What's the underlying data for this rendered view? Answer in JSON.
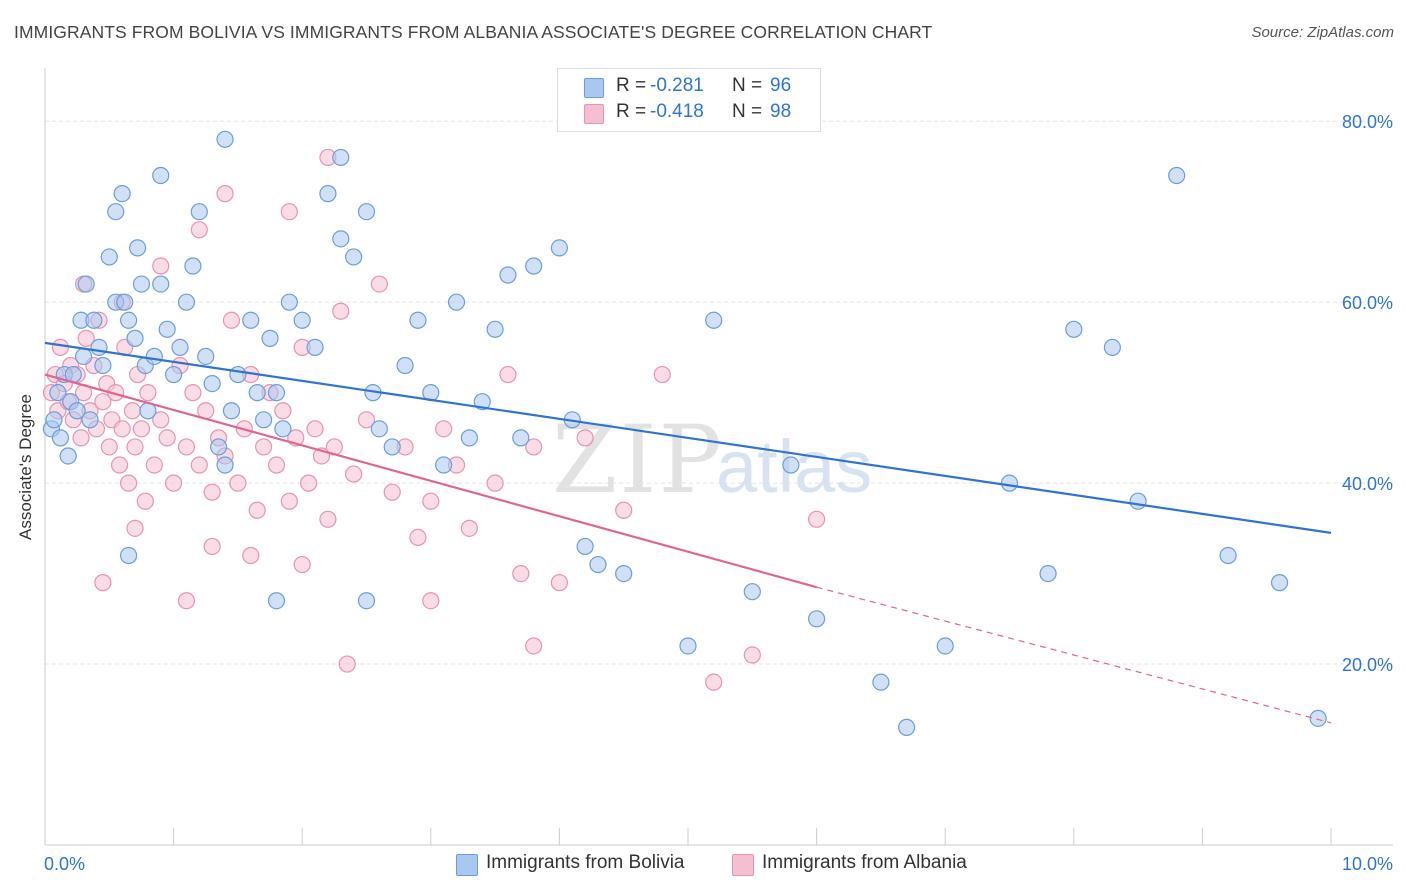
{
  "title": "IMMIGRANTS FROM BOLIVIA VS IMMIGRANTS FROM ALBANIA ASSOCIATE'S DEGREE CORRELATION CHART",
  "source": "Source: ZipAtlas.com",
  "watermark": {
    "zip": "ZIP",
    "atlas": "atlas"
  },
  "colors": {
    "bolivia_fill": "#a9c8ef",
    "bolivia_stroke": "#6b9ddc",
    "bolivia_line": "#2f74d0",
    "albania_fill": "#f6bfd1",
    "albania_stroke": "#e893b0",
    "albania_line": "#e06494",
    "value_text": "#2f74d0",
    "grid": "#e3e3e3"
  },
  "legend": {
    "rows": [
      {
        "r_label": "R =",
        "r_value": "-0.281",
        "n_label": "N =",
        "n_value": "96"
      },
      {
        "r_label": "R =",
        "r_value": "-0.418",
        "n_label": "N =",
        "n_value": "98"
      }
    ]
  },
  "bottom_legend": {
    "bolivia": "Immigrants from Bolivia",
    "albania": "Immigrants from Albania"
  },
  "chart_data": {
    "type": "scatter",
    "xlabel": "",
    "ylabel": "Associate's Degree",
    "xlim": [
      0,
      10
    ],
    "ylim": [
      0,
      85
    ],
    "x_tick_labels": [
      {
        "value": 0,
        "label": "0.0%"
      },
      {
        "value": 10,
        "label": "10.0%"
      }
    ],
    "y_tick_labels": [
      {
        "value": 20,
        "label": "20.0%"
      },
      {
        "value": 40,
        "label": "40.0%"
      },
      {
        "value": 60,
        "label": "60.0%"
      },
      {
        "value": 80,
        "label": "80.0%"
      }
    ],
    "grid": true,
    "series": [
      {
        "name": "Immigrants from Bolivia",
        "r": -0.281,
        "n": 96,
        "trend": {
          "x0": 0,
          "y0": 55.5,
          "x1": 10,
          "y1": 34.5,
          "dashed_to": null
        },
        "points": [
          [
            0.05,
            46
          ],
          [
            0.07,
            47
          ],
          [
            0.1,
            50
          ],
          [
            0.15,
            52
          ],
          [
            0.2,
            49
          ],
          [
            0.22,
            52
          ],
          [
            0.25,
            48
          ],
          [
            0.3,
            54
          ],
          [
            0.35,
            47
          ],
          [
            0.12,
            45
          ],
          [
            0.18,
            43
          ],
          [
            0.28,
            58
          ],
          [
            0.32,
            62
          ],
          [
            0.38,
            58
          ],
          [
            0.42,
            55
          ],
          [
            0.45,
            53
          ],
          [
            0.5,
            65
          ],
          [
            0.55,
            60
          ],
          [
            0.6,
            72
          ],
          [
            0.62,
            60
          ],
          [
            0.65,
            58
          ],
          [
            0.7,
            56
          ],
          [
            0.72,
            66
          ],
          [
            0.75,
            62
          ],
          [
            0.78,
            53
          ],
          [
            0.8,
            48
          ],
          [
            0.85,
            54
          ],
          [
            0.9,
            62
          ],
          [
            0.95,
            57
          ],
          [
            1.0,
            52
          ],
          [
            1.05,
            55
          ],
          [
            1.1,
            60
          ],
          [
            1.15,
            64
          ],
          [
            1.2,
            70
          ],
          [
            1.25,
            54
          ],
          [
            1.3,
            51
          ],
          [
            1.35,
            44
          ],
          [
            1.4,
            42
          ],
          [
            1.45,
            48
          ],
          [
            1.5,
            52
          ],
          [
            1.6,
            58
          ],
          [
            1.65,
            50
          ],
          [
            1.7,
            47
          ],
          [
            1.75,
            56
          ],
          [
            1.8,
            50
          ],
          [
            1.85,
            46
          ],
          [
            1.9,
            60
          ],
          [
            2.0,
            58
          ],
          [
            2.1,
            55
          ],
          [
            2.2,
            72
          ],
          [
            2.3,
            67
          ],
          [
            2.4,
            65
          ],
          [
            2.5,
            70
          ],
          [
            2.55,
            50
          ],
          [
            2.6,
            46
          ],
          [
            2.7,
            44
          ],
          [
            2.8,
            53
          ],
          [
            2.9,
            58
          ],
          [
            3.0,
            50
          ],
          [
            3.1,
            42
          ],
          [
            3.2,
            60
          ],
          [
            3.3,
            45
          ],
          [
            3.4,
            49
          ],
          [
            3.5,
            57
          ],
          [
            3.6,
            63
          ],
          [
            3.8,
            64
          ],
          [
            4.0,
            66
          ],
          [
            4.2,
            33
          ],
          [
            4.3,
            31
          ],
          [
            4.5,
            30
          ],
          [
            5.2,
            58
          ],
          [
            5.5,
            28
          ],
          [
            5.8,
            42
          ],
          [
            6.0,
            25
          ],
          [
            6.5,
            18
          ],
          [
            7.0,
            22
          ],
          [
            7.5,
            40
          ],
          [
            7.8,
            30
          ],
          [
            8.0,
            57
          ],
          [
            8.3,
            55
          ],
          [
            8.8,
            74
          ],
          [
            9.2,
            32
          ],
          [
            9.6,
            29
          ],
          [
            9.9,
            14
          ],
          [
            0.55,
            70
          ],
          [
            0.9,
            74
          ],
          [
            1.4,
            78
          ],
          [
            2.3,
            76
          ],
          [
            0.65,
            32
          ],
          [
            1.8,
            27
          ],
          [
            2.5,
            27
          ],
          [
            3.7,
            45
          ],
          [
            4.1,
            47
          ],
          [
            5.0,
            22
          ],
          [
            6.7,
            13
          ],
          [
            8.5,
            38
          ]
        ]
      },
      {
        "name": "Immigrants from Albania",
        "r": -0.418,
        "n": 98,
        "trend": {
          "x0": 0,
          "y0": 52,
          "x1": 6.0,
          "y1": 28.5,
          "dashed_to": {
            "x": 10,
            "y": 13.5
          }
        },
        "points": [
          [
            0.05,
            50
          ],
          [
            0.08,
            52
          ],
          [
            0.1,
            48
          ],
          [
            0.12,
            55
          ],
          [
            0.15,
            51
          ],
          [
            0.18,
            49
          ],
          [
            0.2,
            53
          ],
          [
            0.22,
            47
          ],
          [
            0.25,
            52
          ],
          [
            0.28,
            45
          ],
          [
            0.3,
            50
          ],
          [
            0.32,
            56
          ],
          [
            0.35,
            48
          ],
          [
            0.38,
            53
          ],
          [
            0.4,
            46
          ],
          [
            0.42,
            58
          ],
          [
            0.45,
            49
          ],
          [
            0.48,
            51
          ],
          [
            0.5,
            44
          ],
          [
            0.52,
            47
          ],
          [
            0.55,
            50
          ],
          [
            0.58,
            42
          ],
          [
            0.6,
            46
          ],
          [
            0.62,
            55
          ],
          [
            0.65,
            40
          ],
          [
            0.68,
            48
          ],
          [
            0.7,
            44
          ],
          [
            0.72,
            52
          ],
          [
            0.75,
            46
          ],
          [
            0.78,
            38
          ],
          [
            0.8,
            50
          ],
          [
            0.85,
            42
          ],
          [
            0.9,
            47
          ],
          [
            0.95,
            45
          ],
          [
            1.0,
            40
          ],
          [
            1.05,
            53
          ],
          [
            1.1,
            44
          ],
          [
            1.15,
            50
          ],
          [
            1.2,
            42
          ],
          [
            1.25,
            48
          ],
          [
            1.3,
            39
          ],
          [
            1.35,
            45
          ],
          [
            1.4,
            43
          ],
          [
            1.45,
            58
          ],
          [
            1.5,
            40
          ],
          [
            1.55,
            46
          ],
          [
            1.6,
            52
          ],
          [
            1.65,
            37
          ],
          [
            1.7,
            44
          ],
          [
            1.75,
            50
          ],
          [
            1.8,
            42
          ],
          [
            1.85,
            48
          ],
          [
            1.9,
            38
          ],
          [
            1.95,
            45
          ],
          [
            2.0,
            55
          ],
          [
            2.05,
            40
          ],
          [
            2.1,
            46
          ],
          [
            2.15,
            43
          ],
          [
            2.2,
            36
          ],
          [
            2.25,
            44
          ],
          [
            2.3,
            59
          ],
          [
            2.4,
            41
          ],
          [
            2.5,
            47
          ],
          [
            2.6,
            62
          ],
          [
            2.7,
            39
          ],
          [
            2.8,
            44
          ],
          [
            2.9,
            34
          ],
          [
            3.0,
            38
          ],
          [
            3.1,
            46
          ],
          [
            3.2,
            42
          ],
          [
            3.3,
            35
          ],
          [
            3.5,
            40
          ],
          [
            3.6,
            52
          ],
          [
            3.7,
            30
          ],
          [
            3.8,
            44
          ],
          [
            4.0,
            29
          ],
          [
            4.2,
            45
          ],
          [
            4.5,
            37
          ],
          [
            4.8,
            52
          ],
          [
            5.2,
            18
          ],
          [
            5.5,
            21
          ],
          [
            6.0,
            36
          ],
          [
            0.3,
            62
          ],
          [
            0.6,
            60
          ],
          [
            0.9,
            64
          ],
          [
            1.2,
            68
          ],
          [
            1.4,
            72
          ],
          [
            1.9,
            70
          ],
          [
            2.2,
            76
          ],
          [
            0.45,
            29
          ],
          [
            1.1,
            27
          ],
          [
            1.6,
            32
          ],
          [
            2.35,
            20
          ],
          [
            3.0,
            27
          ],
          [
            3.8,
            22
          ],
          [
            0.7,
            35
          ],
          [
            1.3,
            33
          ],
          [
            2.0,
            31
          ]
        ]
      }
    ]
  }
}
